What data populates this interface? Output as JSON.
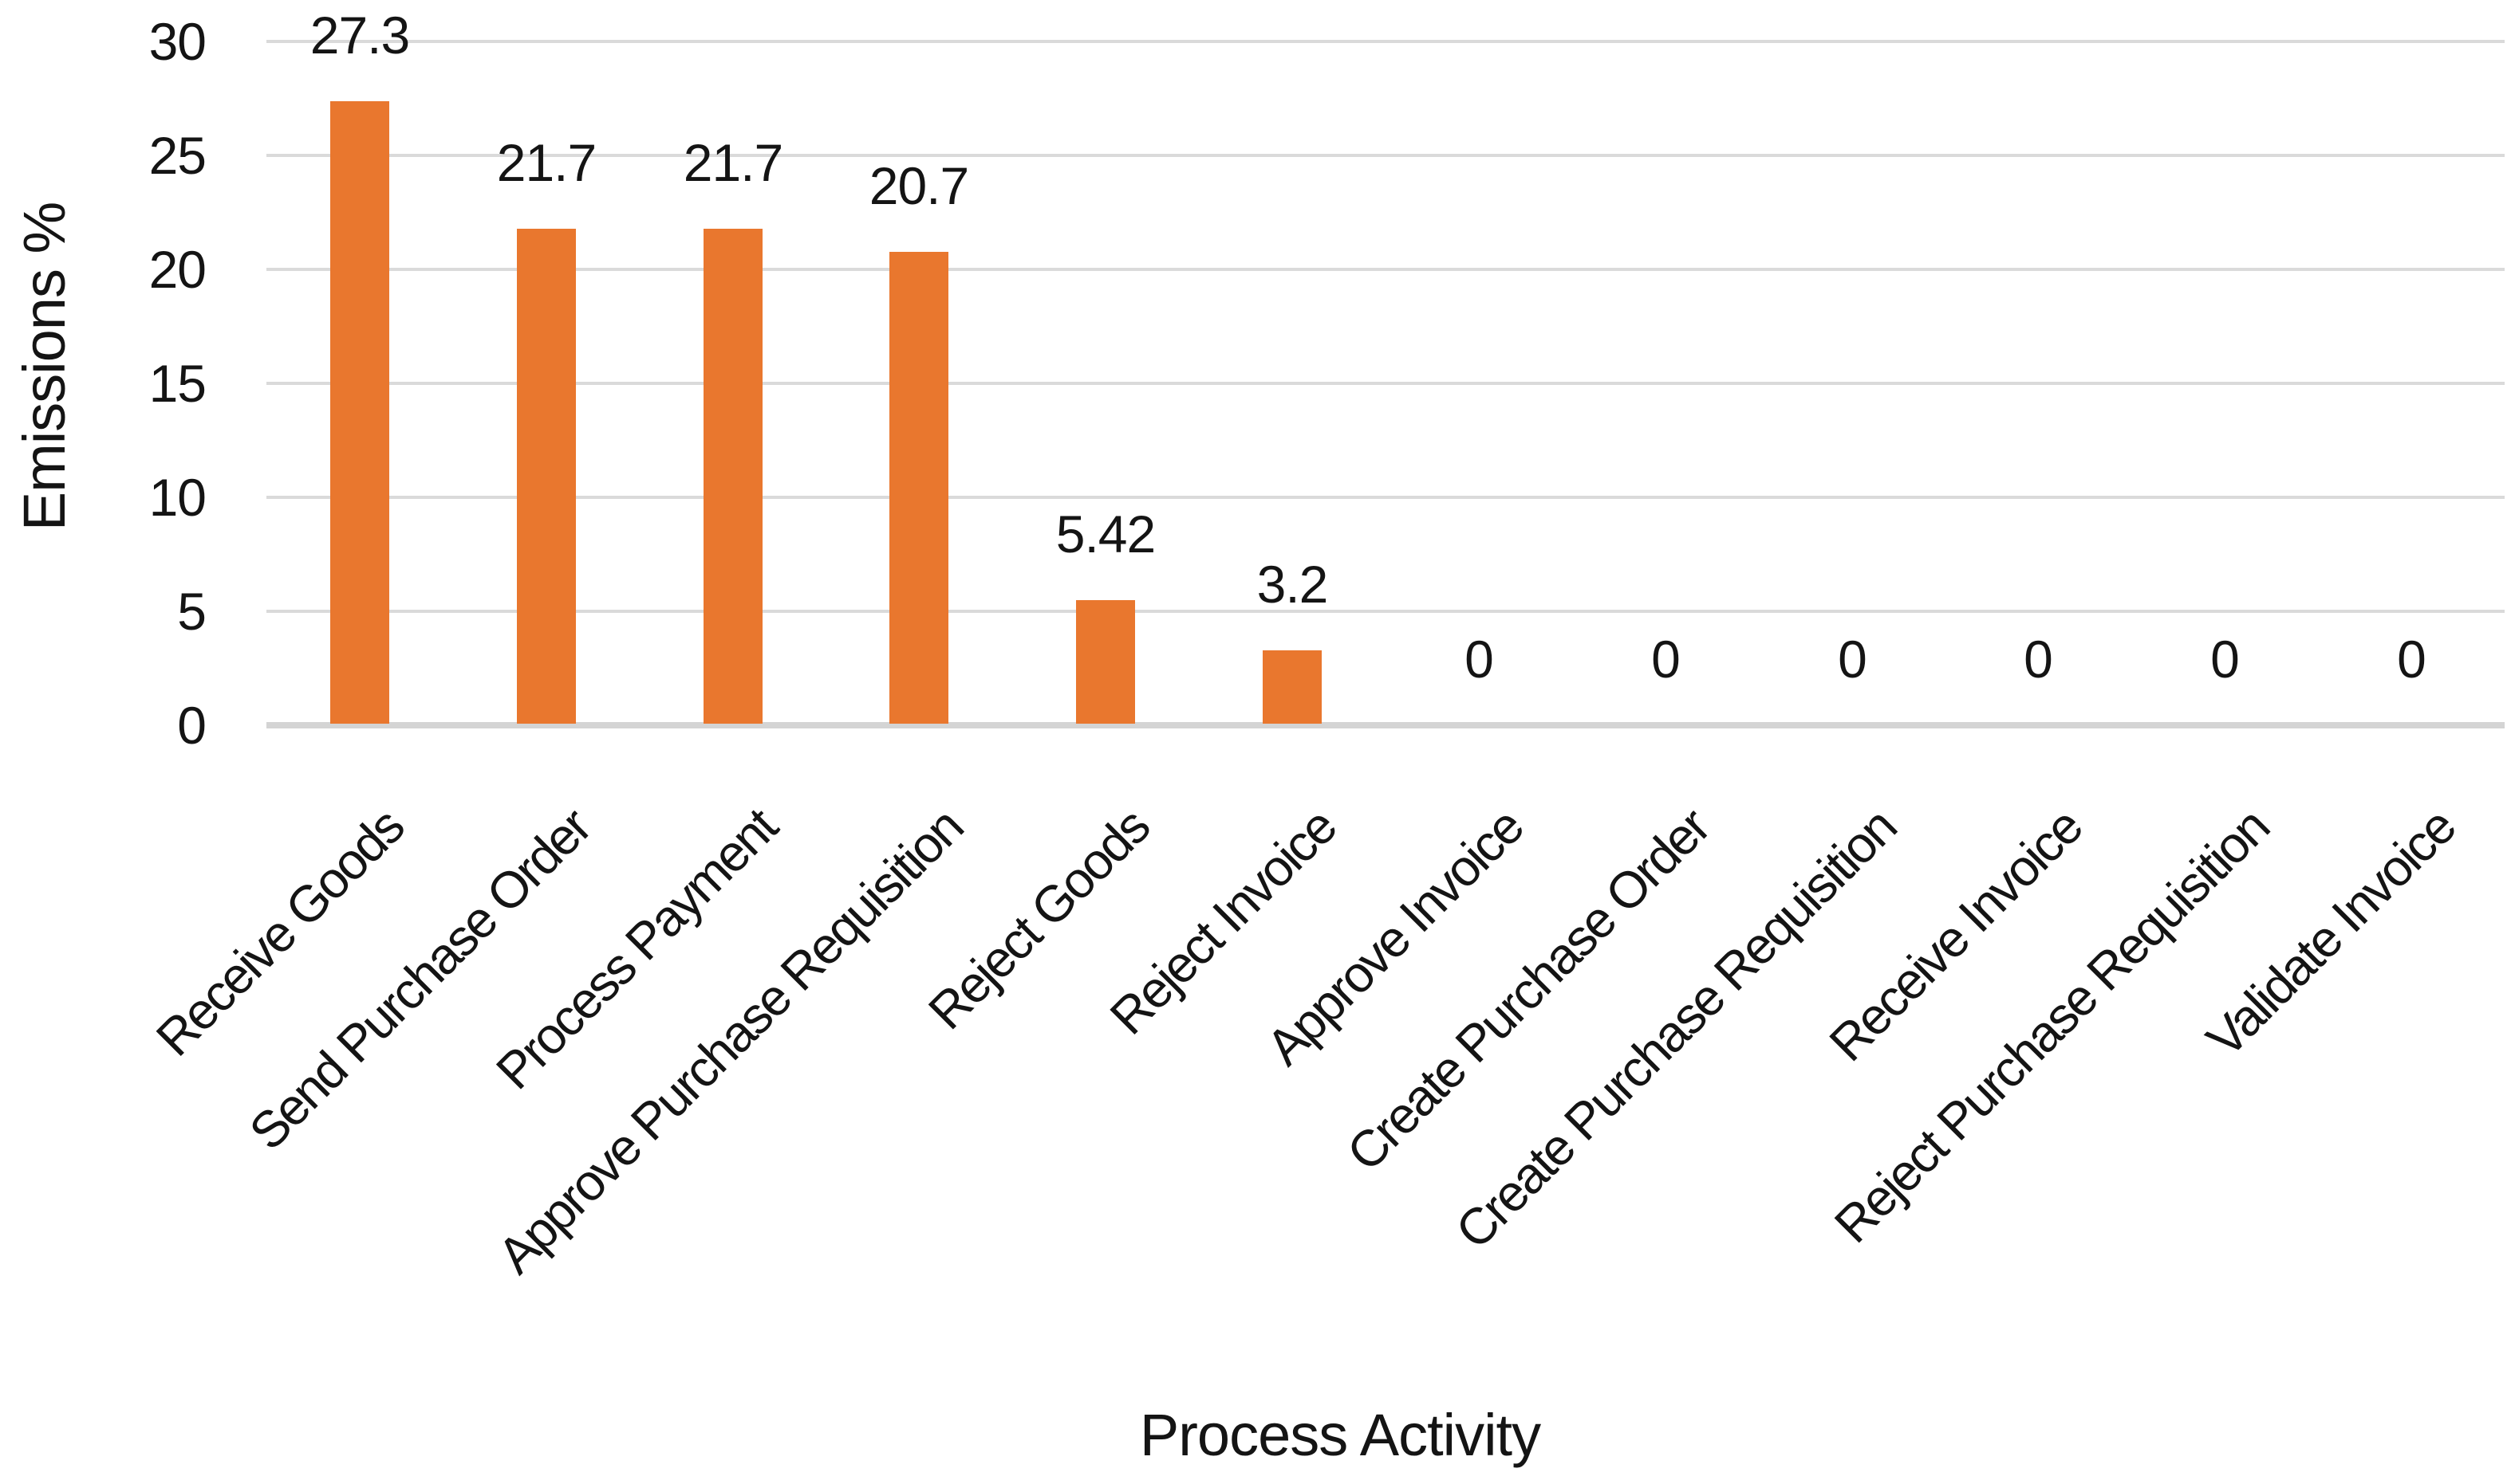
{
  "chart_data": {
    "type": "bar",
    "title": "",
    "xlabel": "Process Activity",
    "ylabel": "Emissions %",
    "categories": [
      "Receive Goods",
      "Send Purchase Order",
      "Process Payment",
      "Approve Purchase Requisition",
      "Reject Goods",
      "Reject Invoice",
      "Approve Invoice",
      "Create Purchase Order",
      "Create Purchase Requisition",
      "Receive Invoice",
      "Reject Purchase Requisition",
      "Validate Invoice"
    ],
    "values": [
      27.3,
      21.7,
      21.7,
      20.7,
      5.42,
      3.2,
      0,
      0,
      0,
      0,
      0,
      0
    ],
    "data_labels": [
      "27.3",
      "21.7",
      "21.7",
      "20.7",
      "5.42",
      "3.2",
      "0",
      "0",
      "0",
      "0",
      "0",
      "0"
    ],
    "y_ticks": [
      0,
      5,
      10,
      15,
      20,
      25,
      30
    ],
    "ylim": [
      0,
      30
    ],
    "grid": true,
    "legend": false,
    "bar_color": "#E9772E",
    "gridline_color": "#DADADA",
    "axis_line_color": "#D4D4D4",
    "text_color": "#141414"
  }
}
